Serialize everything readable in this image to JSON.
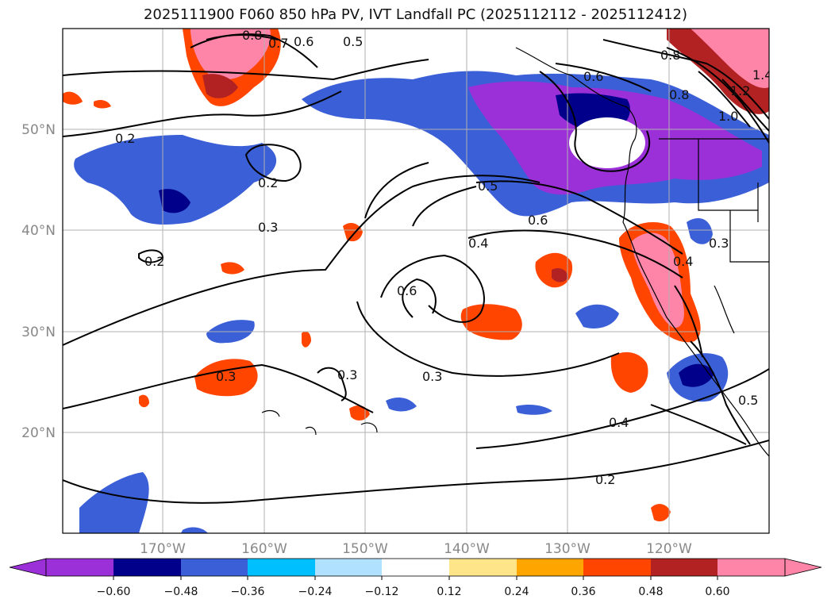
{
  "title": "2025111900 F060 850 hPa PV, IVT Landfall PC (2025112112 - 2025112412)",
  "axes": {
    "lon_labels": [
      "170°W",
      "160°W",
      "150°W",
      "140°W",
      "130°W",
      "120°W"
    ],
    "lat_labels": [
      "50°N",
      "40°N",
      "30°N",
      "20°N"
    ]
  },
  "colorbar": {
    "ticks": [
      "−0.60",
      "−0.48",
      "−0.36",
      "−0.24",
      "−0.12",
      "0.12",
      "0.24",
      "0.36",
      "0.48",
      "0.60"
    ],
    "colors": [
      "#9b30d9",
      "#00008b",
      "#3b5fd6",
      "#00bfff",
      "#b0e2ff",
      "#ffffff",
      "#ffe58a",
      "#ffa500",
      "#ff4500",
      "#b22222",
      "#ff85a8",
      "#ff85a8"
    ],
    "extend": "both"
  },
  "contour_labels": [
    "0.2",
    "0.2",
    "0.2",
    "0.2",
    "0.3",
    "0.3",
    "0.3",
    "0.3",
    "0.3",
    "0.4",
    "0.4",
    "0.4",
    "0.5",
    "0.5",
    "0.5",
    "0.6",
    "0.6",
    "0.6",
    "0.6",
    "0.7",
    "0.8",
    "0.8",
    "0.8",
    "1.0",
    "1.2",
    "1.4"
  ],
  "legend_colors": {
    "land_outline": "#000000",
    "grid": "#b0b0b0",
    "contour": "#000000"
  }
}
